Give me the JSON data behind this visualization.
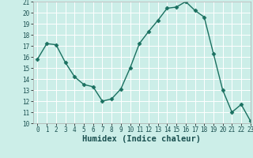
{
  "x": [
    0,
    1,
    2,
    3,
    4,
    5,
    6,
    7,
    8,
    9,
    10,
    11,
    12,
    13,
    14,
    15,
    16,
    17,
    18,
    19,
    20,
    21,
    22,
    23
  ],
  "y": [
    15.8,
    17.2,
    17.1,
    15.5,
    14.2,
    13.5,
    13.3,
    12.0,
    12.2,
    13.1,
    15.0,
    17.2,
    18.3,
    19.3,
    20.4,
    20.5,
    21.0,
    20.2,
    19.6,
    16.3,
    13.0,
    11.0,
    11.7,
    10.2
  ],
  "line_color": "#1a7060",
  "marker": "D",
  "marker_size": 2.5,
  "bg_color": "#cceee8",
  "grid_color": "#ffffff",
  "xlabel": "Humidex (Indice chaleur)",
  "ylim": [
    10,
    21
  ],
  "xlim": [
    -0.5,
    23
  ],
  "yticks": [
    10,
    11,
    12,
    13,
    14,
    15,
    16,
    17,
    18,
    19,
    20,
    21
  ],
  "xticks": [
    0,
    1,
    2,
    3,
    4,
    5,
    6,
    7,
    8,
    9,
    10,
    11,
    12,
    13,
    14,
    15,
    16,
    17,
    18,
    19,
    20,
    21,
    22,
    23
  ],
  "tick_fontsize": 5.5,
  "label_fontsize": 7.5
}
